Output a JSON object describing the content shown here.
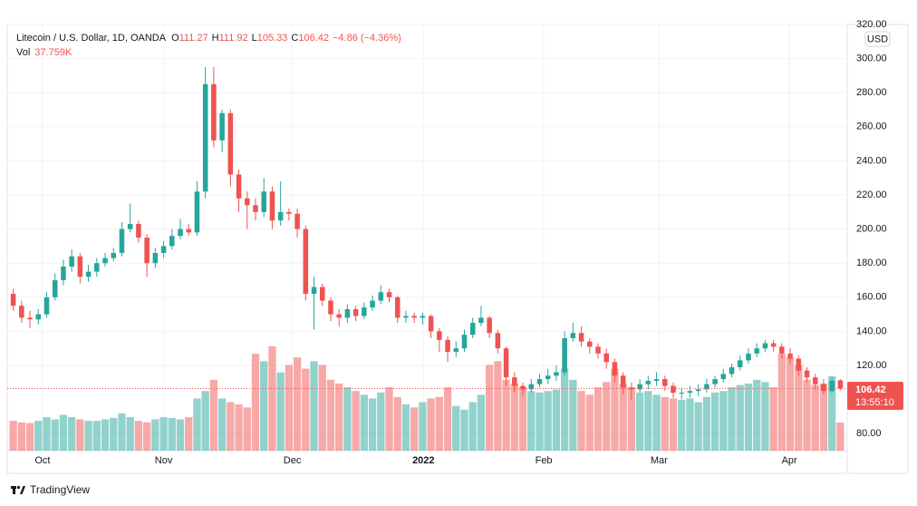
{
  "chart_data": {
    "type": "candlestick",
    "title": "Litecoin / U.S. Dollar, 1D, OANDA",
    "ohlc_letters": [
      "O",
      "H",
      "L",
      "C"
    ],
    "change_label": "−4.86 (−4.36%)",
    "volume_title": "Vol",
    "volume_value_label": "37.759K",
    "currency": "USD",
    "countdown": "13:55:10",
    "brand": "TradingView",
    "up_color": "#26a69a",
    "down_color": "#ef5350",
    "grid": true,
    "open": [
      162,
      155,
      148,
      147,
      150,
      160,
      170,
      178,
      184,
      172,
      175,
      180,
      183,
      186,
      200,
      203,
      195,
      180,
      186,
      190,
      196,
      200,
      198,
      222,
      285,
      252,
      268,
      232,
      218,
      214,
      210,
      222,
      205,
      210,
      209,
      200,
      162,
      166,
      158,
      150,
      148,
      153,
      149,
      154,
      158,
      163,
      160,
      148,
      149,
      148,
      149,
      140,
      135,
      128,
      130,
      138,
      145,
      148,
      139,
      130,
      113,
      108,
      106,
      109,
      112,
      114,
      116,
      136,
      139,
      134,
      131,
      127,
      122,
      114,
      107,
      106,
      109,
      111,
      112,
      108,
      104,
      104,
      105,
      106,
      109,
      112,
      115,
      119,
      123,
      127,
      130,
      133,
      131,
      127,
      124,
      117,
      113,
      109,
      105,
      111.27
    ],
    "high": [
      165,
      158,
      152,
      153,
      163,
      174,
      182,
      188,
      186,
      179,
      183,
      186,
      189,
      204,
      215,
      205,
      197,
      189,
      193,
      200,
      206,
      203,
      228,
      295,
      295,
      270,
      270,
      235,
      222,
      218,
      230,
      225,
      228,
      212,
      212,
      202,
      172,
      168,
      160,
      153,
      156,
      155,
      157,
      161,
      167,
      165,
      161,
      152,
      151,
      151,
      150,
      142,
      137,
      134,
      141,
      148,
      155,
      149,
      141,
      131,
      116,
      110,
      112,
      115,
      118,
      120,
      140,
      145,
      143,
      136,
      133,
      130,
      124,
      116,
      110,
      112,
      114,
      116,
      114,
      110,
      107,
      108,
      109,
      112,
      114,
      118,
      121,
      126,
      130,
      133,
      135,
      135,
      133,
      130,
      126,
      119,
      115,
      112,
      113,
      111.92
    ],
    "low": [
      152,
      145,
      142,
      144,
      148,
      158,
      167,
      175,
      168,
      169,
      172,
      178,
      181,
      184,
      198,
      192,
      172,
      177,
      183,
      188,
      194,
      196,
      196,
      218,
      248,
      245,
      225,
      210,
      200,
      205,
      207,
      200,
      202,
      205,
      195,
      158,
      141,
      155,
      146,
      143,
      145,
      146,
      147,
      152,
      156,
      157,
      145,
      145,
      145,
      144,
      136,
      128,
      122,
      125,
      128,
      136,
      143,
      136,
      127,
      108,
      104,
      102,
      104,
      107,
      109,
      111,
      114,
      134,
      131,
      127,
      124,
      118,
      110,
      103,
      100,
      104,
      106,
      108,
      105,
      101,
      100,
      101,
      102,
      104,
      107,
      110,
      113,
      117,
      121,
      125,
      128,
      128,
      124,
      121,
      114,
      110,
      106,
      103,
      104,
      105.33
    ],
    "close": [
      155,
      148,
      147,
      150,
      160,
      170,
      178,
      184,
      172,
      175,
      180,
      183,
      186,
      200,
      203,
      195,
      180,
      186,
      190,
      196,
      200,
      198,
      222,
      285,
      252,
      268,
      232,
      218,
      214,
      210,
      222,
      205,
      210,
      209,
      200,
      162,
      166,
      158,
      150,
      148,
      153,
      149,
      154,
      158,
      163,
      160,
      148,
      149,
      148,
      149,
      140,
      135,
      128,
      130,
      138,
      145,
      148,
      139,
      130,
      113,
      108,
      106,
      109,
      112,
      114,
      116,
      136,
      139,
      134,
      131,
      127,
      122,
      114,
      107,
      106,
      109,
      111,
      112,
      108,
      104,
      104,
      105,
      106,
      109,
      112,
      115,
      119,
      123,
      127,
      130,
      133,
      131,
      127,
      124,
      117,
      113,
      109,
      105,
      111,
      106.42
    ],
    "volume": [
      40,
      38,
      37,
      40,
      45,
      42,
      48,
      45,
      42,
      40,
      40,
      42,
      44,
      50,
      45,
      40,
      38,
      42,
      45,
      44,
      42,
      45,
      70,
      80,
      95,
      70,
      65,
      62,
      58,
      130,
      120,
      140,
      105,
      115,
      125,
      110,
      120,
      115,
      95,
      90,
      85,
      80,
      75,
      70,
      78,
      85,
      72,
      62,
      58,
      65,
      70,
      72,
      85,
      60,
      55,
      65,
      75,
      115,
      120,
      95,
      90,
      85,
      80,
      78,
      80,
      82,
      110,
      95,
      80,
      75,
      85,
      92,
      110,
      90,
      85,
      78,
      80,
      75,
      72,
      70,
      68,
      70,
      65,
      72,
      78,
      80,
      85,
      88,
      90,
      95,
      92,
      85,
      130,
      125,
      115,
      95,
      88,
      90,
      100,
      37.759
    ],
    "xlim": [
      -0.5,
      99.5
    ],
    "xticks": [
      {
        "value": 3.5,
        "label": "Oct"
      },
      {
        "value": 18,
        "label": "Nov"
      },
      {
        "value": 33.4,
        "label": "Dec"
      },
      {
        "value": 49.1,
        "label": "2022"
      },
      {
        "value": 63.5,
        "label": "Feb"
      },
      {
        "value": 77.3,
        "label": "Mar"
      },
      {
        "value": 92.9,
        "label": "Apr"
      }
    ],
    "ylim": [
      70,
      320
    ],
    "yticks": [
      {
        "value": 80,
        "label": "80.00"
      },
      {
        "value": 120,
        "label": "120.00"
      },
      {
        "value": 140,
        "label": "140.00"
      },
      {
        "value": 160,
        "label": "160.00"
      },
      {
        "value": 180,
        "label": "180.00"
      },
      {
        "value": 200,
        "label": "200.00"
      },
      {
        "value": 220,
        "label": "220.00"
      },
      {
        "value": 240,
        "label": "240.00"
      },
      {
        "value": 260,
        "label": "260.00"
      },
      {
        "value": 280,
        "label": "280.00"
      },
      {
        "value": 300,
        "label": "300.00"
      },
      {
        "value": 320,
        "label": "320.00"
      }
    ]
  }
}
